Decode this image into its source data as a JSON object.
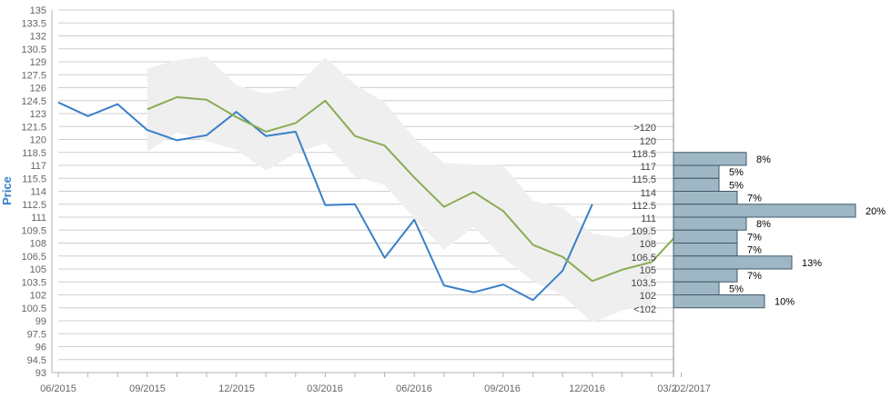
{
  "chart_data": {
    "type": "line",
    "ylabel": "Price",
    "ylim": [
      93,
      135
    ],
    "y_ticks": [
      "93",
      "94.5",
      "96",
      "97.5",
      "99",
      "100.5",
      "102",
      "103.5",
      "105",
      "106.5",
      "108",
      "109.5",
      "111",
      "112.5",
      "114",
      "115.5",
      "117",
      "118.5",
      "120",
      "121.5",
      "123",
      "124.5",
      "126",
      "127.5",
      "129",
      "130.5",
      "132",
      "133.5",
      "135"
    ],
    "x_ticks": [
      "06/2015",
      "09/2015",
      "12/2015",
      "03/2016",
      "06/2016",
      "09/2016",
      "12/2016",
      "03/2",
      "02/2017"
    ],
    "grid": true,
    "colors": {
      "price": "#3a7fc8",
      "forecast": "#8aac54",
      "band": "#efefef",
      "histogram_fill": "#9fb6c4",
      "histogram_stroke": "#3f5a6b"
    },
    "series": [
      {
        "key": "price",
        "points": [
          [
            0,
            124.3
          ],
          [
            1,
            122.7
          ],
          [
            2,
            124.1
          ],
          [
            3,
            121.1
          ],
          [
            4,
            119.9
          ],
          [
            5,
            120.5
          ],
          [
            6,
            123.2
          ],
          [
            7,
            120.4
          ],
          [
            8,
            120.9
          ],
          [
            9,
            112.4
          ],
          [
            10,
            112.5
          ],
          [
            11,
            106.3
          ],
          [
            12,
            110.7
          ],
          [
            13,
            103.1
          ],
          [
            14,
            102.3
          ],
          [
            15,
            103.2
          ],
          [
            16,
            101.4
          ],
          [
            17,
            104.8
          ],
          [
            18,
            112.5
          ]
        ]
      },
      {
        "key": "forecast",
        "points": [
          [
            3,
            123.5
          ],
          [
            4,
            124.9
          ],
          [
            5,
            124.6
          ],
          [
            6,
            122.6
          ],
          [
            7,
            120.9
          ],
          [
            8,
            121.9
          ],
          [
            9,
            124.5
          ],
          [
            10,
            120.4
          ],
          [
            11,
            119.3
          ],
          [
            12,
            115.6
          ],
          [
            13,
            112.2
          ],
          [
            14,
            113.9
          ],
          [
            15,
            111.7
          ],
          [
            16,
            107.8
          ],
          [
            17,
            106.4
          ],
          [
            18,
            103.6
          ],
          [
            19,
            104.9
          ],
          [
            20,
            105.8
          ],
          [
            21,
            109.5
          ]
        ]
      }
    ],
    "band": {
      "upper": [
        [
          3,
          128.2
        ],
        [
          4,
          129.2
        ],
        [
          5,
          129.6
        ],
        [
          6,
          126.3
        ],
        [
          7,
          125.3
        ],
        [
          8,
          126.0
        ],
        [
          9,
          129.5
        ],
        [
          10,
          126.4
        ],
        [
          11,
          124.3
        ],
        [
          12,
          120.2
        ],
        [
          13,
          117.3
        ],
        [
          14,
          117.1
        ],
        [
          15,
          117.0
        ],
        [
          16,
          112.9
        ],
        [
          17,
          112.1
        ],
        [
          18,
          109.1
        ],
        [
          19,
          108.6
        ],
        [
          20,
          110.1
        ]
      ],
      "lower": [
        [
          3,
          118.6
        ],
        [
          4,
          120.8
        ],
        [
          5,
          119.8
        ],
        [
          6,
          118.8
        ],
        [
          7,
          116.4
        ],
        [
          8,
          118.4
        ],
        [
          9,
          119.6
        ],
        [
          10,
          115.7
        ],
        [
          11,
          114.7
        ],
        [
          12,
          110.9
        ],
        [
          13,
          107.2
        ],
        [
          14,
          109.9
        ],
        [
          15,
          106.3
        ],
        [
          16,
          103.6
        ],
        [
          17,
          101.9
        ],
        [
          18,
          98.8
        ],
        [
          19,
          100.2
        ],
        [
          20,
          100.9
        ]
      ]
    },
    "histogram": {
      "bins": [
        ">120",
        "120",
        "118.5",
        "117",
        "115.5",
        "114",
        "112.5",
        "111",
        "109.5",
        "108",
        "106.5",
        "105",
        "103.5",
        "102",
        "<102"
      ],
      "bars": [
        {
          "lo": 117,
          "hi": 118.5,
          "percent": 8,
          "label": "8%"
        },
        {
          "lo": 115.5,
          "hi": 117,
          "percent": 5,
          "label": "5%"
        },
        {
          "lo": 114,
          "hi": 115.5,
          "percent": 5,
          "label": "5%"
        },
        {
          "lo": 112.5,
          "hi": 114,
          "percent": 7,
          "label": "7%"
        },
        {
          "lo": 111,
          "hi": 112.5,
          "percent": 20,
          "label": "20%"
        },
        {
          "lo": 109.5,
          "hi": 111,
          "percent": 8,
          "label": "8%"
        },
        {
          "lo": 108,
          "hi": 109.5,
          "percent": 7,
          "label": "7%"
        },
        {
          "lo": 106.5,
          "hi": 108,
          "percent": 7,
          "label": "7%"
        },
        {
          "lo": 105,
          "hi": 106.5,
          "percent": 13,
          "label": "13%"
        },
        {
          "lo": 103.5,
          "hi": 105,
          "percent": 7,
          "label": "7%"
        },
        {
          "lo": 102,
          "hi": 103.5,
          "percent": 5,
          "label": "5%"
        },
        {
          "lo": 100.5,
          "hi": 102,
          "percent": 10,
          "label": "10%"
        }
      ]
    }
  }
}
